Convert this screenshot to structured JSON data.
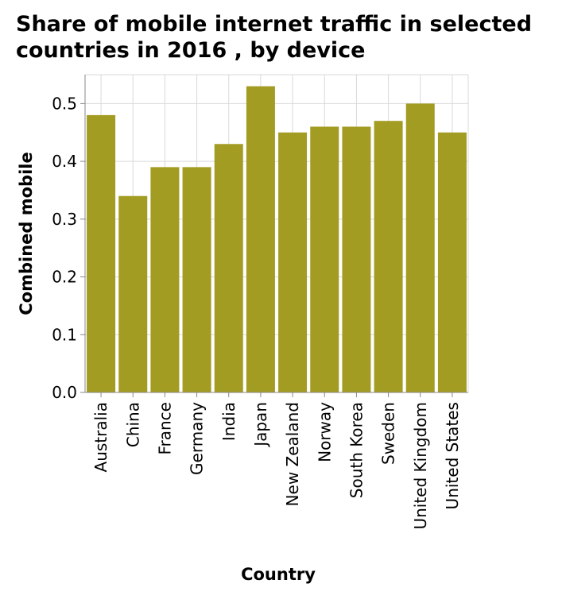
{
  "chart_data": {
    "type": "bar",
    "title": "Share of mobile internet traffic in selected countries in 2016 , by device",
    "xlabel": "Country",
    "ylabel": "Combined mobile",
    "categories": [
      "Australia",
      "China",
      "France",
      "Germany",
      "India",
      "Japan",
      "New Zealand",
      "Norway",
      "South Korea",
      "Sweden",
      "United Kingdom",
      "United States"
    ],
    "values": [
      0.48,
      0.34,
      0.39,
      0.39,
      0.43,
      0.53,
      0.45,
      0.46,
      0.46,
      0.47,
      0.5,
      0.45
    ],
    "ylim": [
      0,
      0.55
    ],
    "yticks": [
      "0.0",
      "0.1",
      "0.2",
      "0.3",
      "0.4",
      "0.5"
    ],
    "grid": true,
    "bar_color": "#a39c22",
    "grid_color": "#d9d9d9"
  }
}
